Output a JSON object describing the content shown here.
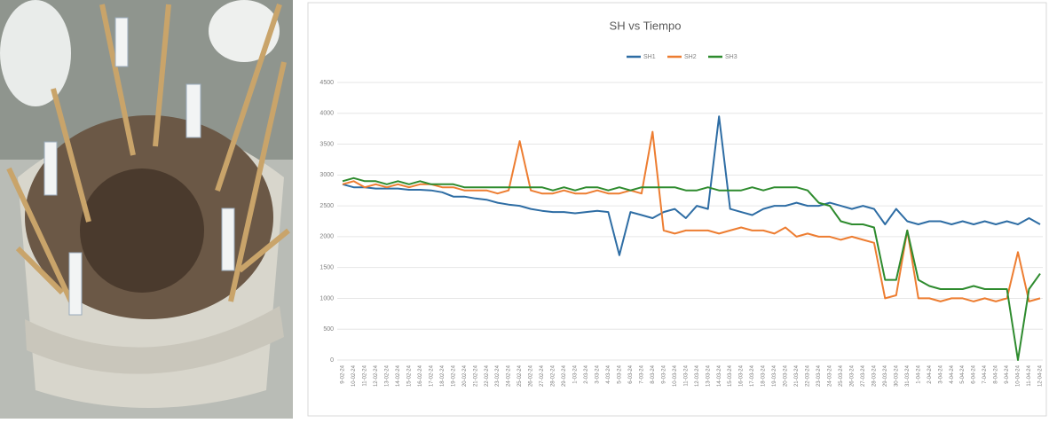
{
  "chart_data": {
    "type": "line",
    "title": "SH vs Tiempo",
    "categories": [
      "9-02-24",
      "10-02-24",
      "11-02-24",
      "12-02-24",
      "13-02-24",
      "14-02-24",
      "15-02-24",
      "16-02-24",
      "17-02-24",
      "18-02-24",
      "19-02-24",
      "20-02-24",
      "21-02-24",
      "22-02-24",
      "23-02-24",
      "24-02-24",
      "25-02-24",
      "26-02-24",
      "27-02-24",
      "28-02-24",
      "29-02-24",
      "1-03-24",
      "2-03-24",
      "3-03-24",
      "4-03-24",
      "5-03-24",
      "6-03-24",
      "7-03-24",
      "8-03-24",
      "9-03-24",
      "10-03-24",
      "11-03-24",
      "12-03-24",
      "13-03-24",
      "14-03-24",
      "15-03-24",
      "16-03-24",
      "17-03-24",
      "18-03-24",
      "19-03-24",
      "20-03-24",
      "21-03-24",
      "22-03-24",
      "23-03-24",
      "24-03-24",
      "25-03-24",
      "26-03-24",
      "27-03-24",
      "28-03-24",
      "29-03-24",
      "30-03-24",
      "31-03-24",
      "1-04-24",
      "2-04-24",
      "3-04-24",
      "4-04-24",
      "5-04-24",
      "6-04-24",
      "7-04-24",
      "8-04-24",
      "9-04-24",
      "10-04-24",
      "11-04-24",
      "12-04-24"
    ],
    "series": [
      {
        "name": "SH1",
        "color": "#2e6da4",
        "values": [
          2850,
          2800,
          2800,
          2780,
          2780,
          2780,
          2760,
          2760,
          2750,
          2720,
          2650,
          2650,
          2620,
          2600,
          2550,
          2520,
          2500,
          2450,
          2420,
          2400,
          2400,
          2380,
          2400,
          2420,
          2400,
          1700,
          2400,
          2350,
          2300,
          2400,
          2450,
          2300,
          2500,
          2450,
          3950,
          2450,
          2400,
          2350,
          2450,
          2500,
          2500,
          2550,
          2500,
          2500,
          2550,
          2500,
          2450,
          2500,
          2450,
          2200,
          2450,
          2250,
          2200,
          2250,
          2250,
          2200,
          2250,
          2200,
          2250,
          2200,
          2250,
          2200,
          2300,
          2200
        ]
      },
      {
        "name": "SH2",
        "color": "#ed7d31",
        "values": [
          2850,
          2900,
          2800,
          2850,
          2800,
          2850,
          2800,
          2850,
          2850,
          2800,
          2800,
          2750,
          2750,
          2750,
          2700,
          2750,
          3550,
          2750,
          2700,
          2700,
          2750,
          2700,
          2700,
          2750,
          2700,
          2700,
          2750,
          2700,
          3700,
          2100,
          2050,
          2100,
          2100,
          2100,
          2050,
          2100,
          2150,
          2100,
          2100,
          2050,
          2150,
          2000,
          2050,
          2000,
          2000,
          1950,
          2000,
          1950,
          1900,
          1000,
          1050,
          2100,
          1000,
          1000,
          950,
          1000,
          1000,
          950,
          1000,
          950,
          1000,
          1750,
          950,
          1000
        ]
      },
      {
        "name": "SH3",
        "color": "#2e8b2e",
        "values": [
          2900,
          2950,
          2900,
          2900,
          2850,
          2900,
          2850,
          2900,
          2850,
          2850,
          2850,
          2800,
          2800,
          2800,
          2800,
          2800,
          2800,
          2800,
          2800,
          2750,
          2800,
          2750,
          2800,
          2800,
          2750,
          2800,
          2750,
          2800,
          2800,
          2800,
          2800,
          2750,
          2750,
          2800,
          2750,
          2750,
          2750,
          2800,
          2750,
          2800,
          2800,
          2800,
          2750,
          2550,
          2500,
          2250,
          2200,
          2200,
          2150,
          1300,
          1300,
          2100,
          1300,
          1200,
          1150,
          1150,
          1150,
          1200,
          1150,
          1150,
          1150,
          0,
          1150,
          1400
        ]
      }
    ],
    "ylim": [
      0,
      4500
    ],
    "yticks": [
      0,
      500,
      1000,
      1500,
      2000,
      2500,
      3000,
      3500,
      4000,
      4500
    ],
    "grid": true
  }
}
